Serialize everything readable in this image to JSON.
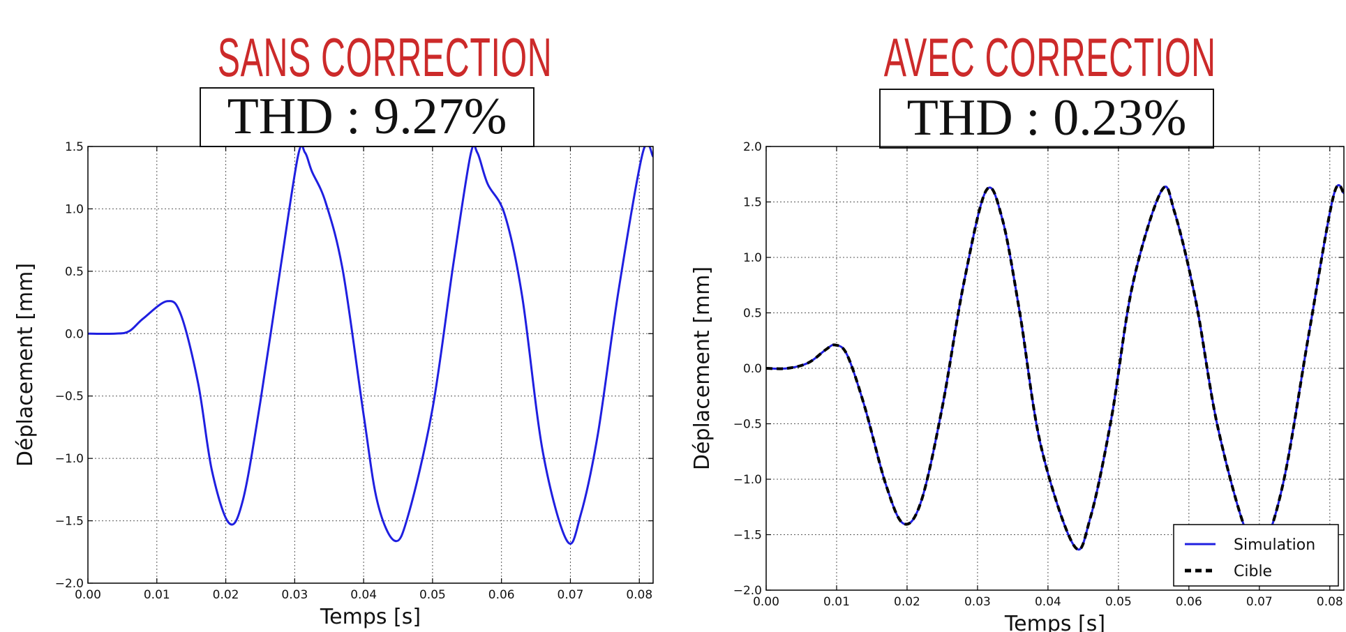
{
  "panels": [
    {
      "title": "SANS CORRECTION",
      "thd": "THD : 9.27%"
    },
    {
      "title": "AVEC CORRECTION",
      "thd": "THD : 0.23%"
    }
  ],
  "chart_data": [
    {
      "type": "line",
      "xlabel": "Temps [s]",
      "ylabel": "Déplacement [mm]",
      "xlim": [
        0.0,
        0.082
      ],
      "ylim": [
        -2.0,
        1.5
      ],
      "x_ticks": [
        "0.00",
        "0.01",
        "0.02",
        "0.03",
        "0.04",
        "0.05",
        "0.06",
        "0.07",
        "0.08"
      ],
      "y_ticks": [
        "1.5",
        "1.0",
        "0.5",
        "0.0",
        "−0.5",
        "−1.0",
        "−1.5",
        "−2.0"
      ],
      "grid": true,
      "legend": null,
      "colors": {
        "series": "#1f1fe0"
      },
      "series": [
        {
          "x": [
            0.0,
            0.004,
            0.006,
            0.008,
            0.0115,
            0.0135,
            0.016,
            0.018,
            0.0205,
            0.0225,
            0.025,
            0.028,
            0.0305,
            0.0315,
            0.0325,
            0.0345,
            0.037,
            0.04,
            0.042,
            0.0445,
            0.0465,
            0.05,
            0.053,
            0.0555,
            0.0565,
            0.058,
            0.0605,
            0.063,
            0.066,
            0.0695,
            0.0715,
            0.074,
            0.077,
            0.0805,
            0.082
          ],
          "y": [
            0.0,
            0.0,
            0.02,
            0.12,
            0.26,
            0.15,
            -0.4,
            -1.1,
            -1.52,
            -1.33,
            -0.55,
            0.55,
            1.43,
            1.45,
            1.3,
            1.05,
            0.5,
            -0.65,
            -1.35,
            -1.66,
            -1.45,
            -0.6,
            0.55,
            1.43,
            1.45,
            1.2,
            0.95,
            0.3,
            -0.95,
            -1.66,
            -1.45,
            -0.8,
            0.35,
            1.45,
            1.42
          ]
        }
      ]
    },
    {
      "type": "line",
      "xlabel": "Temps [s]",
      "ylabel": "Déplacement [mm]",
      "xlim": [
        0.0,
        0.082
      ],
      "ylim": [
        -2.0,
        2.0
      ],
      "x_ticks": [
        "0.00",
        "0.01",
        "0.02",
        "0.03",
        "0.04",
        "0.05",
        "0.06",
        "0.07",
        "0.08"
      ],
      "y_ticks": [
        "2.0",
        "1.5",
        "1.0",
        "0.5",
        "0.0",
        "−0.5",
        "−1.0",
        "−1.5",
        "−2.0"
      ],
      "grid": true,
      "legend": "bottom-right",
      "colors": {
        "simulation": "#1f1fe0",
        "cible": "#000000"
      },
      "series": [
        {
          "name": "Simulation",
          "style": "solid",
          "x": [
            0.0,
            0.003,
            0.006,
            0.0085,
            0.0098,
            0.0115,
            0.014,
            0.017,
            0.0195,
            0.022,
            0.025,
            0.028,
            0.0312,
            0.0335,
            0.036,
            0.039,
            0.0437,
            0.046,
            0.049,
            0.052,
            0.0561,
            0.058,
            0.061,
            0.064,
            0.068,
            0.0705,
            0.0735,
            0.077,
            0.0805,
            0.082
          ],
          "y": [
            0.0,
            0.0,
            0.05,
            0.17,
            0.21,
            0.12,
            -0.35,
            -1.05,
            -1.4,
            -1.2,
            -0.35,
            0.75,
            1.6,
            1.35,
            0.5,
            -0.7,
            -1.6,
            -1.35,
            -0.45,
            0.75,
            1.6,
            1.4,
            0.6,
            -0.5,
            -1.45,
            -1.6,
            -1.0,
            0.3,
            1.55,
            1.58
          ]
        },
        {
          "name": "Cible",
          "style": "dashed",
          "x": [
            0.0,
            0.003,
            0.006,
            0.0085,
            0.0098,
            0.0115,
            0.014,
            0.017,
            0.0195,
            0.022,
            0.025,
            0.028,
            0.0312,
            0.0335,
            0.036,
            0.039,
            0.0437,
            0.046,
            0.049,
            0.052,
            0.0561,
            0.058,
            0.061,
            0.064,
            0.068,
            0.0705,
            0.0735,
            0.077,
            0.0805,
            0.082
          ],
          "y": [
            0.0,
            0.0,
            0.05,
            0.17,
            0.21,
            0.12,
            -0.35,
            -1.05,
            -1.4,
            -1.2,
            -0.35,
            0.75,
            1.6,
            1.35,
            0.5,
            -0.7,
            -1.6,
            -1.35,
            -0.45,
            0.75,
            1.6,
            1.4,
            0.6,
            -0.5,
            -1.45,
            -1.6,
            -1.0,
            0.3,
            1.55,
            1.58
          ]
        }
      ]
    }
  ]
}
